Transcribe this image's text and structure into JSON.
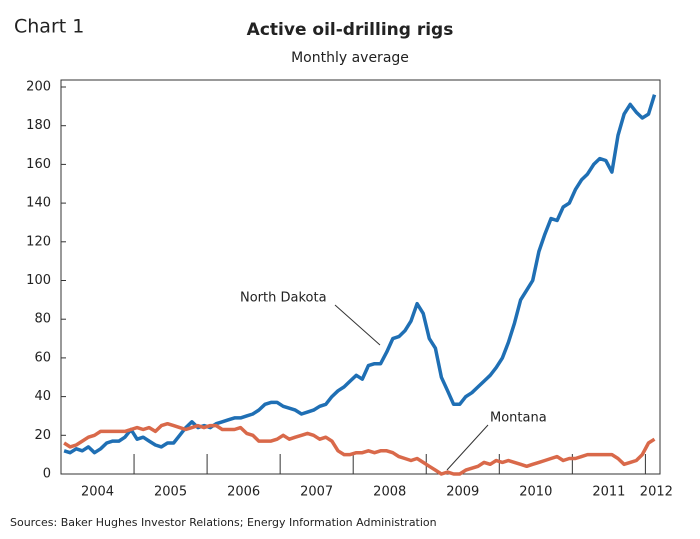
{
  "chart_data": {
    "type": "line",
    "label": "Chart 1",
    "title": "Active oil-drilling rigs",
    "subtitle": "Monthly average",
    "source": "Sources: Baker Hughes Investor Relations; Energy Information Administration",
    "x": [
      2004.042,
      2004.125,
      2004.208,
      2004.292,
      2004.375,
      2004.458,
      2004.542,
      2004.625,
      2004.708,
      2004.792,
      2004.875,
      2004.958,
      2005.042,
      2005.125,
      2005.208,
      2005.292,
      2005.375,
      2005.458,
      2005.542,
      2005.625,
      2005.708,
      2005.792,
      2005.875,
      2005.958,
      2006.042,
      2006.125,
      2006.208,
      2006.292,
      2006.375,
      2006.458,
      2006.542,
      2006.625,
      2006.708,
      2006.792,
      2006.875,
      2006.958,
      2007.042,
      2007.125,
      2007.208,
      2007.292,
      2007.375,
      2007.458,
      2007.542,
      2007.625,
      2007.708,
      2007.792,
      2007.875,
      2007.958,
      2008.042,
      2008.125,
      2008.208,
      2008.292,
      2008.375,
      2008.458,
      2008.542,
      2008.625,
      2008.708,
      2008.792,
      2008.875,
      2008.958,
      2009.042,
      2009.125,
      2009.208,
      2009.292,
      2009.375,
      2009.458,
      2009.542,
      2009.625,
      2009.708,
      2009.792,
      2009.875,
      2009.958,
      2010.042,
      2010.125,
      2010.208,
      2010.292,
      2010.375,
      2010.458,
      2010.542,
      2010.625,
      2010.708,
      2010.792,
      2010.875,
      2010.958,
      2011.042,
      2011.125,
      2011.208,
      2011.292,
      2011.375,
      2011.458,
      2011.542,
      2011.625,
      2011.708,
      2011.792,
      2011.875,
      2011.958,
      2012.042,
      2012.125
    ],
    "series": [
      {
        "name": "North Dakota",
        "color": "#1f6fb4",
        "values": [
          12,
          11,
          13,
          12,
          14,
          11,
          13,
          16,
          17,
          17,
          19,
          23,
          18,
          19,
          17,
          15,
          14,
          16,
          16,
          20,
          24,
          27,
          24,
          25,
          24,
          26,
          27,
          28,
          29,
          29,
          30,
          31,
          33,
          36,
          37,
          37,
          35,
          34,
          33,
          31,
          32,
          33,
          35,
          36,
          40,
          43,
          45,
          48,
          51,
          49,
          56,
          57,
          57,
          63,
          70,
          71,
          74,
          79,
          88,
          83,
          70,
          65,
          50,
          43,
          36,
          36,
          40,
          42,
          45,
          48,
          51,
          55,
          60,
          68,
          78,
          90,
          95,
          100,
          115,
          124,
          132,
          131,
          138,
          140,
          147,
          152,
          155,
          160,
          163,
          162,
          156,
          175,
          186,
          191,
          187,
          184,
          186,
          196
        ]
      },
      {
        "name": "Montana",
        "color": "#d9694a",
        "values": [
          16,
          14,
          15,
          17,
          19,
          20,
          22,
          22,
          22,
          22,
          22,
          23,
          24,
          23,
          24,
          22,
          25,
          26,
          25,
          24,
          23,
          24,
          25,
          24,
          25,
          25,
          23,
          23,
          23,
          24,
          21,
          20,
          17,
          17,
          17,
          18,
          20,
          18,
          19,
          20,
          21,
          20,
          18,
          19,
          17,
          12,
          10,
          10,
          11,
          11,
          12,
          11,
          12,
          12,
          11,
          9,
          8,
          7,
          8,
          6,
          4,
          2,
          0,
          1,
          0,
          0,
          2,
          3,
          4,
          6,
          5,
          7,
          6,
          7,
          6,
          5,
          4,
          5,
          6,
          7,
          8,
          9,
          7,
          8,
          8,
          9,
          10,
          10,
          10,
          10,
          10,
          8,
          5,
          6,
          7,
          10,
          16,
          18
        ]
      }
    ],
    "xlim": [
      2004,
      2012.2
    ],
    "xticks": [
      {
        "value": 2004.5,
        "label": "2004"
      },
      {
        "value": 2005.5,
        "label": "2005"
      },
      {
        "value": 2006.5,
        "label": "2006"
      },
      {
        "value": 2007.5,
        "label": "2007"
      },
      {
        "value": 2008.5,
        "label": "2008"
      },
      {
        "value": 2009.5,
        "label": "2009"
      },
      {
        "value": 2010.5,
        "label": "2010"
      },
      {
        "value": 2011.5,
        "label": "2011"
      },
      {
        "value": 2012.15,
        "label": "2012"
      }
    ],
    "xtick_marks": [
      2005,
      2006,
      2007,
      2008,
      2009,
      2010,
      2011,
      2012
    ],
    "ylim": [
      0,
      200
    ],
    "yticks": [
      0,
      20,
      40,
      60,
      80,
      100,
      120,
      140,
      160,
      180,
      200
    ]
  }
}
